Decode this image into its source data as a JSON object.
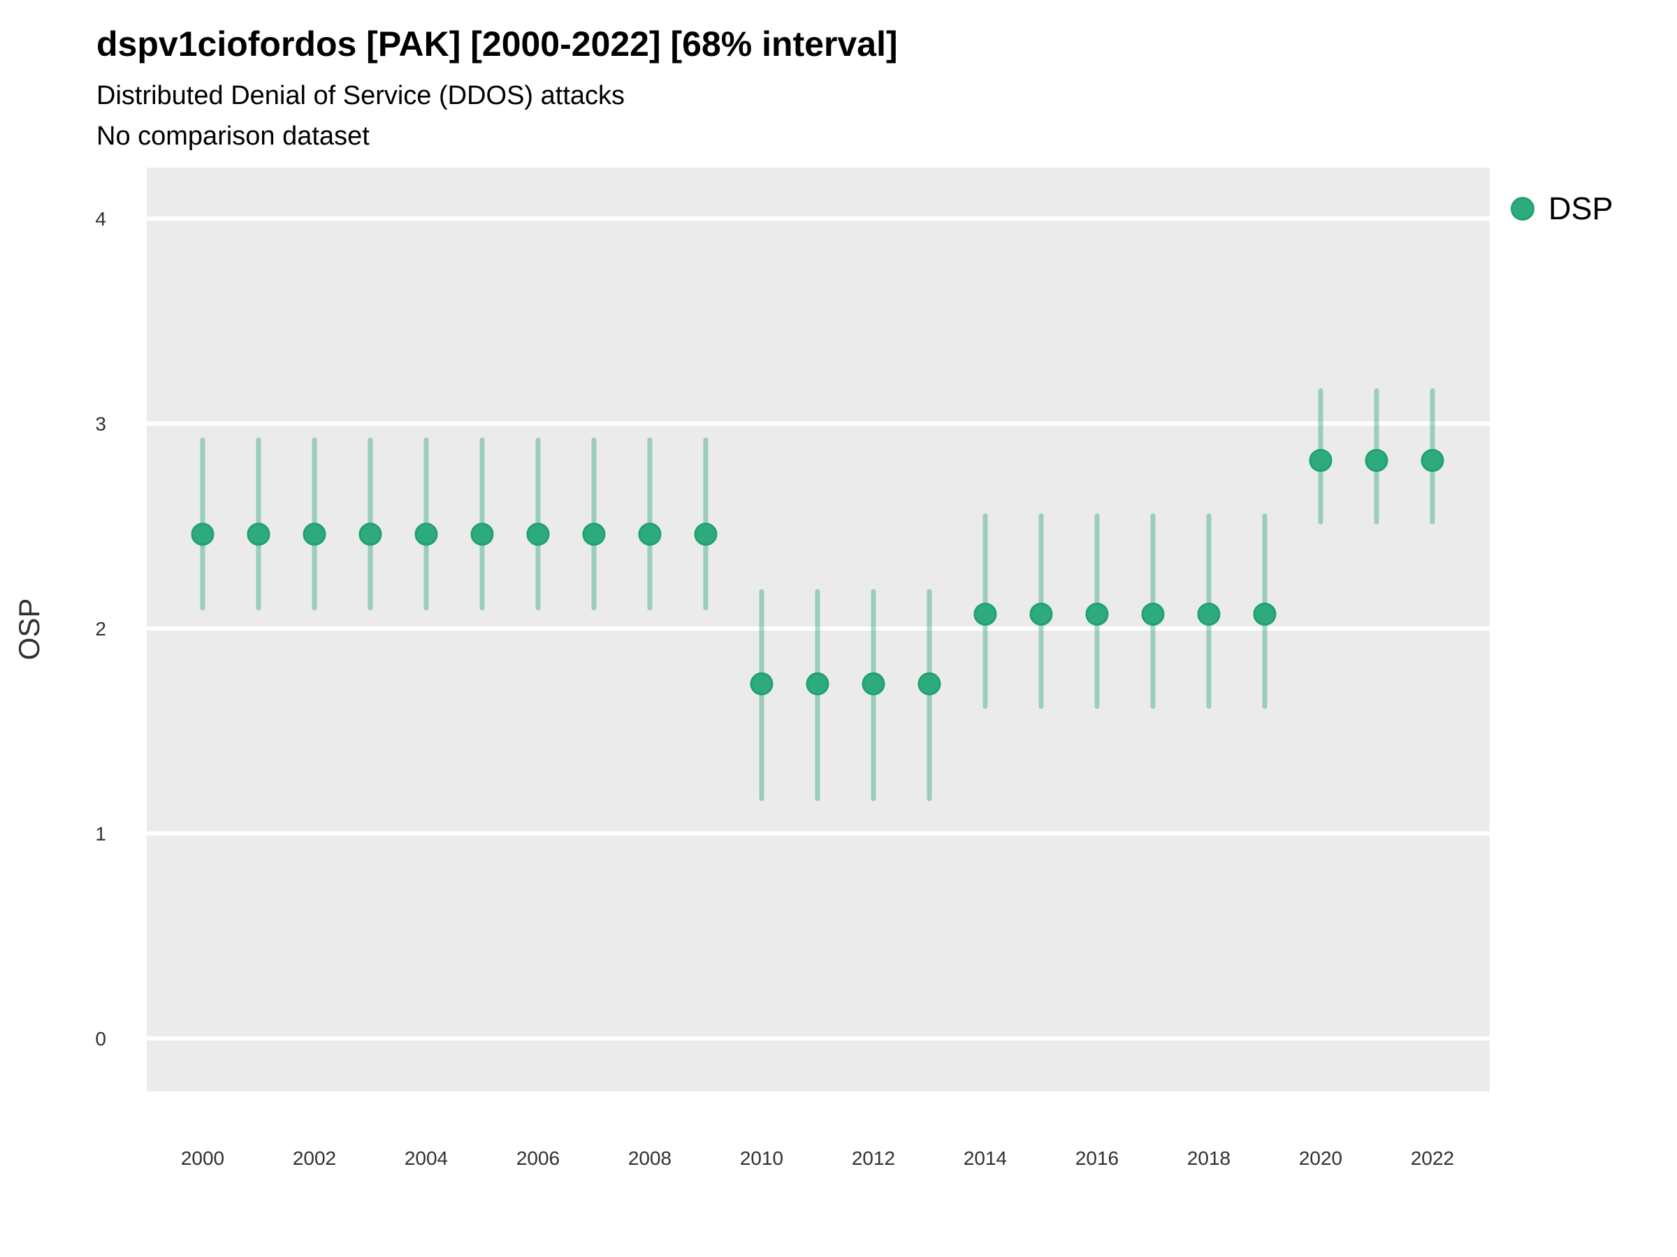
{
  "chart_data": {
    "type": "pointrange",
    "title": "dspv1ciofordos [PAK] [2000-2022] [68% interval]",
    "subtitle": "Distributed Denial of Service (DDOS) attacks",
    "note": "No comparison dataset",
    "ylabel": "OSP",
    "xlabel": "",
    "interval_label": "68% interval",
    "x": [
      2000,
      2001,
      2002,
      2003,
      2004,
      2005,
      2006,
      2007,
      2008,
      2009,
      2010,
      2011,
      2012,
      2013,
      2014,
      2015,
      2016,
      2017,
      2018,
      2019,
      2020,
      2021,
      2022
    ],
    "series": [
      {
        "name": "DSP",
        "mid": [
          2.46,
          2.46,
          2.46,
          2.46,
          2.46,
          2.46,
          2.46,
          2.46,
          2.46,
          2.46,
          1.73,
          1.73,
          1.73,
          1.73,
          2.07,
          2.07,
          2.07,
          2.07,
          2.07,
          2.07,
          2.82,
          2.82,
          2.82
        ],
        "lo": [
          2.1,
          2.1,
          2.1,
          2.1,
          2.1,
          2.1,
          2.1,
          2.1,
          2.1,
          2.1,
          1.17,
          1.17,
          1.17,
          1.17,
          1.62,
          1.62,
          1.62,
          1.62,
          1.62,
          1.62,
          2.52,
          2.52,
          2.52
        ],
        "hi": [
          2.92,
          2.92,
          2.92,
          2.92,
          2.92,
          2.92,
          2.92,
          2.92,
          2.92,
          2.92,
          2.18,
          2.18,
          2.18,
          2.18,
          2.55,
          2.55,
          2.55,
          2.55,
          2.55,
          2.55,
          3.16,
          3.16,
          3.16
        ]
      }
    ],
    "x_ticks": [
      2000,
      2002,
      2004,
      2006,
      2008,
      2010,
      2012,
      2014,
      2016,
      2018,
      2020,
      2022
    ],
    "y_ticks": [
      4,
      3,
      2,
      1,
      0
    ],
    "ylim": [
      -0.26,
      4.25
    ],
    "grid": "horizontal-major-only",
    "legend_position": "right-top",
    "colors": {
      "panel_bg": "#ebebeb",
      "grid": "#ffffff",
      "point_fill": "#2dab7c",
      "point_stroke": "#21a170",
      "range_line": "rgba(42,167,122,0.42)",
      "tick_text": "#303030"
    },
    "legend": {
      "label": "DSP"
    }
  }
}
